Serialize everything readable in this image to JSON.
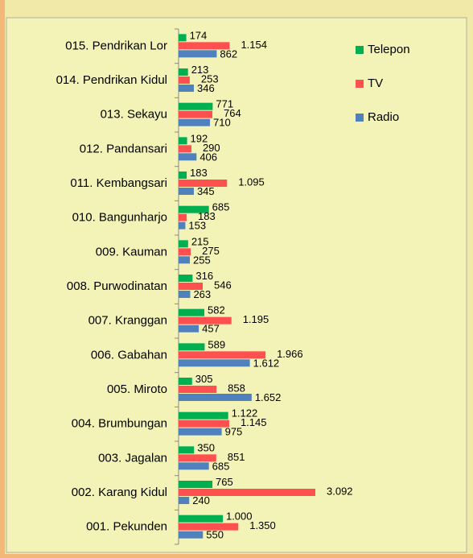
{
  "chart_data": {
    "type": "barh",
    "categories": [
      "015. Pendrikan Lor",
      "014. Pendrikan Kidul",
      "013. Sekayu",
      "012. Pandansari",
      "011. Kembangsari",
      "010. Bangunharjo",
      "009. Kauman",
      "008. Purwodinatan",
      "007. Kranggan",
      "006. Gabahan",
      "005. Miroto",
      "004. Brumbungan",
      "003. Jagalan",
      "002. Karang Kidul",
      "001. Pekunden"
    ],
    "series": [
      {
        "name": "Telepon",
        "color": "#00b050",
        "values": [
          174,
          213,
          771,
          192,
          183,
          685,
          215,
          316,
          582,
          589,
          305,
          1122,
          350,
          765,
          1000
        ],
        "value_labels": [
          "174",
          "213",
          "771",
          "192",
          "183",
          "685",
          "215",
          "316",
          "582",
          "589",
          "305",
          "1.122",
          "350",
          "765",
          "1.000"
        ]
      },
      {
        "name": "TV",
        "color": "#ff5050",
        "values": [
          1154,
          253,
          764,
          290,
          1095,
          183,
          275,
          546,
          1195,
          1966,
          858,
          1145,
          851,
          3092,
          1350
        ],
        "value_labels": [
          "1.154",
          "253",
          "764",
          "290",
          "1.095",
          "183",
          "275",
          "546",
          "1.195",
          "1.966",
          "858",
          "1.145",
          "851",
          "3.092",
          "1.350"
        ]
      },
      {
        "name": "Radio",
        "color": "#4f81bd",
        "values": [
          862,
          346,
          710,
          406,
          345,
          153,
          255,
          263,
          457,
          1612,
          1652,
          975,
          685,
          240,
          550
        ],
        "value_labels": [
          "862",
          "346",
          "710",
          "406",
          "345",
          "153",
          "255",
          "263",
          "457",
          "1.612",
          "1.652",
          "975",
          "685",
          "240",
          "550"
        ]
      }
    ],
    "legend": "right"
  }
}
